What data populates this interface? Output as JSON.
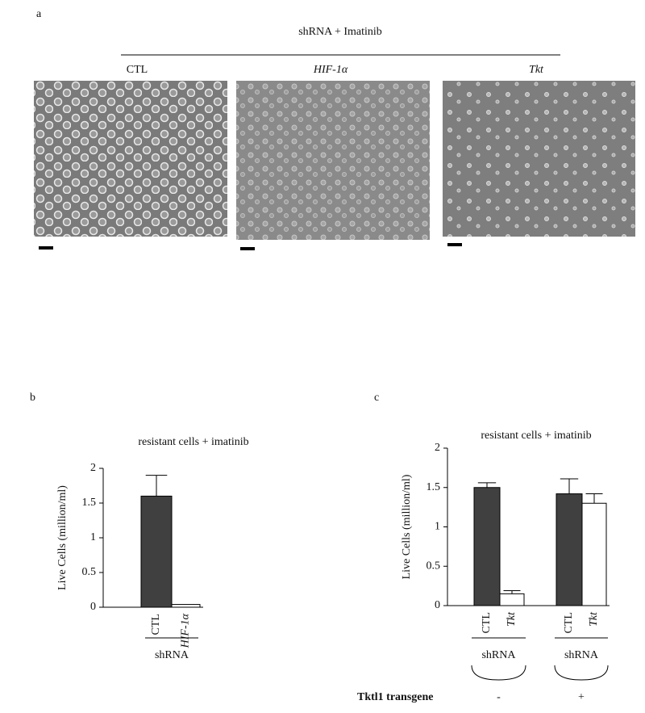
{
  "panel_a": {
    "label": "a",
    "title": "shRNA + Imatinib",
    "images": [
      {
        "label": "CTL",
        "style": "normal"
      },
      {
        "label": "HIF-1α",
        "style": "italic"
      },
      {
        "label": "Tkt",
        "style": "italic"
      }
    ]
  },
  "chart_data": [
    {
      "type": "bar",
      "panel_label": "b",
      "title": "resistant cells + imatinib",
      "y_label": "Live Cells (million/ml)",
      "categories": [
        "CTL",
        "HIF-1α"
      ],
      "category_styles": [
        "normal",
        "italic"
      ],
      "values": [
        1.6,
        0.04
      ],
      "errors": [
        0.3,
        0
      ],
      "colors": [
        "#404040",
        "#ffffff"
      ],
      "ylim": [
        0,
        2
      ],
      "yticks": [
        0,
        0.5,
        1,
        1.5,
        2
      ],
      "group_labels": [
        "shRNA"
      ]
    },
    {
      "type": "bar",
      "panel_label": "c",
      "title": "resistant cells + imatinib",
      "y_label": "Live Cells (million/ml)",
      "categories": [
        "CTL",
        "Tkt",
        "CTL",
        "Tkt"
      ],
      "category_styles": [
        "normal",
        "italic",
        "normal",
        "italic"
      ],
      "values": [
        1.5,
        0.15,
        1.42,
        1.3
      ],
      "errors": [
        0.06,
        0.04,
        0.19,
        0.12
      ],
      "colors": [
        "#404040",
        "#ffffff",
        "#404040",
        "#ffffff"
      ],
      "ylim": [
        0,
        2
      ],
      "yticks": [
        0,
        0.5,
        1,
        1.5,
        2
      ],
      "group_labels": [
        "shRNA",
        "shRNA"
      ],
      "transgene_label": "Tktl1 transgene",
      "transgene_values": [
        "-",
        "+"
      ]
    }
  ]
}
